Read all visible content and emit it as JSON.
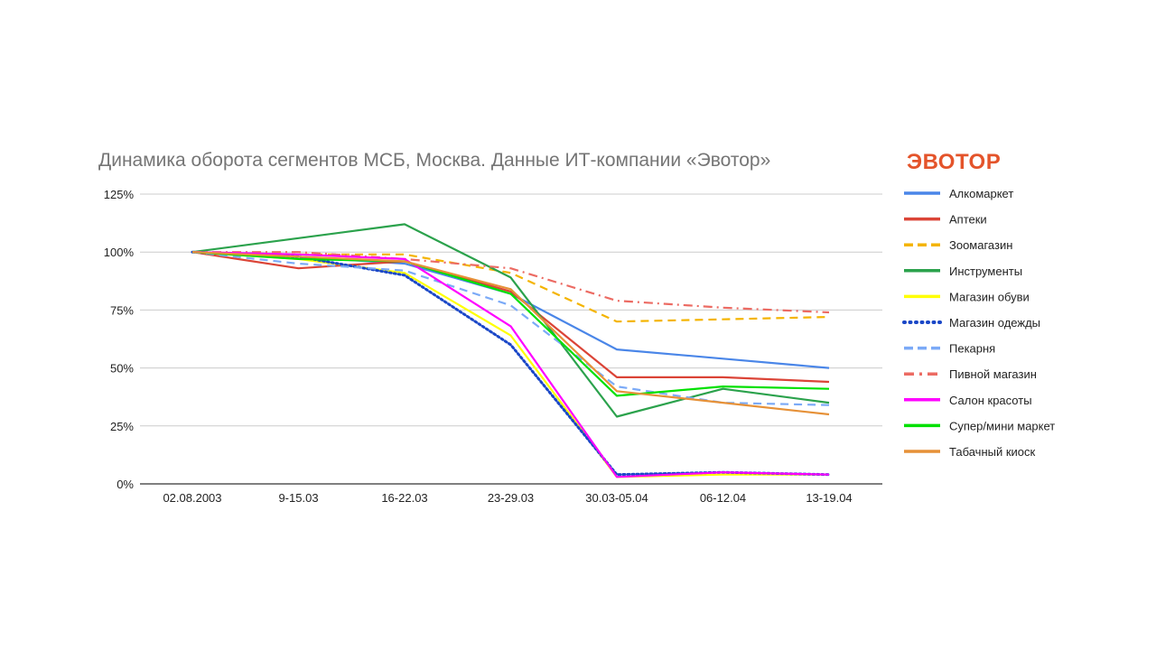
{
  "brand": {
    "name": "ЭВОТОР",
    "color": "#e4542b"
  },
  "chart_data": {
    "type": "line",
    "title": "Динамика оборота сегментов МСБ, Москва. Данные ИТ-компании «Эвотор»",
    "xlabel": "",
    "ylabel": "",
    "categories": [
      "02.08.2003",
      "9-15.03",
      "16-22.03",
      "23-29.03",
      "30.03-05.04",
      "06-12.04",
      "13-19.04"
    ],
    "y_ticks": [
      "0%",
      "25%",
      "50%",
      "75%",
      "100%",
      "125%"
    ],
    "ylim": [
      0,
      125
    ],
    "y_unit": "%",
    "grid": true,
    "legend_position": "right",
    "series": [
      {
        "name": "Алкомаркет",
        "color": "#4a86e8",
        "dash": "solid",
        "values": [
          100,
          98,
          95,
          82,
          58,
          54,
          50
        ]
      },
      {
        "name": "Аптеки",
        "color": "#db4437",
        "dash": "solid",
        "values": [
          100,
          93,
          96,
          83,
          46,
          46,
          44
        ]
      },
      {
        "name": "Зоомагазин",
        "color": "#f4b400",
        "dash": "dashed",
        "values": [
          100,
          99,
          99,
          91,
          70,
          71,
          72
        ]
      },
      {
        "name": "Инструменты",
        "color": "#2ba24c",
        "dash": "solid",
        "values": [
          100,
          106,
          112,
          89,
          29,
          41,
          35
        ]
      },
      {
        "name": "Магазин обуви",
        "color": "#ffff00",
        "dash": "solid",
        "values": [
          100,
          97,
          91,
          64,
          3,
          4,
          4
        ]
      },
      {
        "name": "Магазин одежды",
        "color": "#1a47c7",
        "dash": "dotted",
        "values": [
          100,
          98,
          90,
          60,
          4,
          5,
          4
        ]
      },
      {
        "name": "Пекарня",
        "color": "#7baaf7",
        "dash": "dashed",
        "values": [
          100,
          95,
          92,
          77,
          42,
          35,
          34
        ]
      },
      {
        "name": "Пивной магазин",
        "color": "#ec6b63",
        "dash": "dashdot",
        "values": [
          100,
          100,
          97,
          93,
          79,
          76,
          74
        ]
      },
      {
        "name": "Салон красоты",
        "color": "#ff00ff",
        "dash": "solid",
        "values": [
          100,
          99,
          97,
          68,
          3,
          5,
          4
        ]
      },
      {
        "name": "Супер/мини маркет",
        "color": "#00e000",
        "dash": "solid",
        "values": [
          100,
          97,
          96,
          82,
          38,
          42,
          41
        ]
      },
      {
        "name": "Табачный киоск",
        "color": "#e69138",
        "dash": "solid",
        "values": [
          100,
          98,
          96,
          84,
          40,
          35,
          30
        ]
      }
    ]
  }
}
